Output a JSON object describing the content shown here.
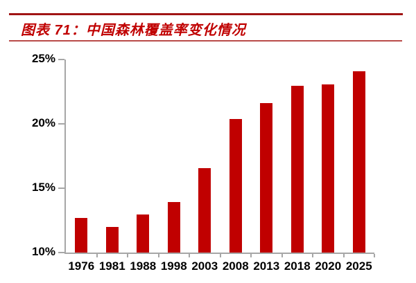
{
  "header": {
    "title": "图表 71：中国森林覆盖率变化情况"
  },
  "style": {
    "title_color": "#C00000",
    "rule_top_color": "#A01414",
    "rule_thin_color": "#B94A48"
  },
  "chart_data": {
    "type": "bar",
    "title": "图表 71：中国森林覆盖率变化情况",
    "categories": [
      "1976",
      "1981",
      "1988",
      "1998",
      "2003",
      "2008",
      "2013",
      "2018",
      "2020",
      "2025"
    ],
    "values": [
      12.7,
      12.0,
      12.98,
      13.92,
      16.55,
      20.36,
      21.63,
      22.96,
      23.04,
      24.1
    ],
    "xlabel": "",
    "ylabel": "",
    "ylim": [
      10,
      25
    ],
    "yticks": [
      {
        "value": 25,
        "label": "25%"
      },
      {
        "value": 20,
        "label": "20%"
      },
      {
        "value": 15,
        "label": "15%"
      },
      {
        "value": 10,
        "label": "10%"
      }
    ],
    "grid": false,
    "legend": "none",
    "bar_color": "#C00000",
    "axis_color": "#A6A6A6",
    "label_color": "#000000"
  }
}
